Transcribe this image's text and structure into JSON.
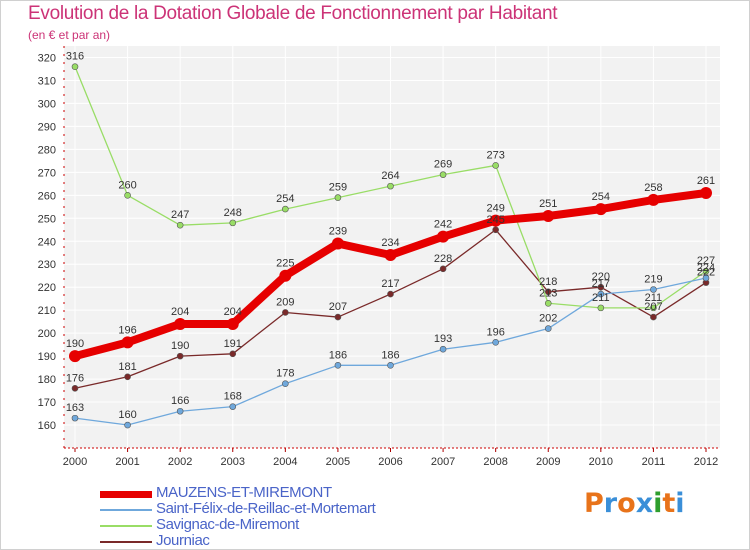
{
  "title": "Evolution de la Dotation Globale de Fonctionnement par Habitant",
  "subtitle": "(en € et par an)",
  "logo": {
    "text": "Proxiti",
    "colors": [
      "#e8731a",
      "#3a8fd8",
      "#e8731a",
      "#3a8fd8",
      "#2e9e2e",
      "#e8731a",
      "#3a8fd8"
    ]
  },
  "chart_data": {
    "type": "line",
    "title": "Evolution de la Dotation Globale de Fonctionnement par Habitant",
    "subtitle": "(en € et par an)",
    "x": [
      "2000",
      "2001",
      "2002",
      "2003",
      "2004",
      "2005",
      "2006",
      "2007",
      "2008",
      "2009",
      "2010",
      "2011",
      "2012"
    ],
    "ylim": [
      150,
      325
    ],
    "yticks": [
      160,
      170,
      180,
      190,
      200,
      210,
      220,
      230,
      240,
      250,
      260,
      270,
      280,
      290,
      300,
      310,
      320
    ],
    "grid": true,
    "legend_position": "bottom-left",
    "series": [
      {
        "name": "MAUZENS-ET-MIREMONT",
        "color": "#e60000",
        "values": [
          190,
          196,
          204,
          204,
          225,
          239,
          234,
          242,
          249,
          251,
          254,
          258,
          261
        ]
      },
      {
        "name": "Saint-Félix-de-Reillac-et-Mortemart",
        "color": "#6fa8dc",
        "values": [
          163,
          160,
          166,
          168,
          178,
          186,
          186,
          193,
          196,
          202,
          217,
          219,
          224
        ]
      },
      {
        "name": "Savignac-de-Miremont",
        "color": "#99dd66",
        "values": [
          316,
          260,
          247,
          248,
          254,
          259,
          264,
          269,
          273,
          213,
          211,
          211,
          227
        ]
      },
      {
        "name": "Journiac",
        "color": "#7a2a2a",
        "values": [
          176,
          181,
          190,
          191,
          209,
          207,
          217,
          228,
          245,
          218,
          220,
          207,
          222
        ]
      }
    ]
  }
}
